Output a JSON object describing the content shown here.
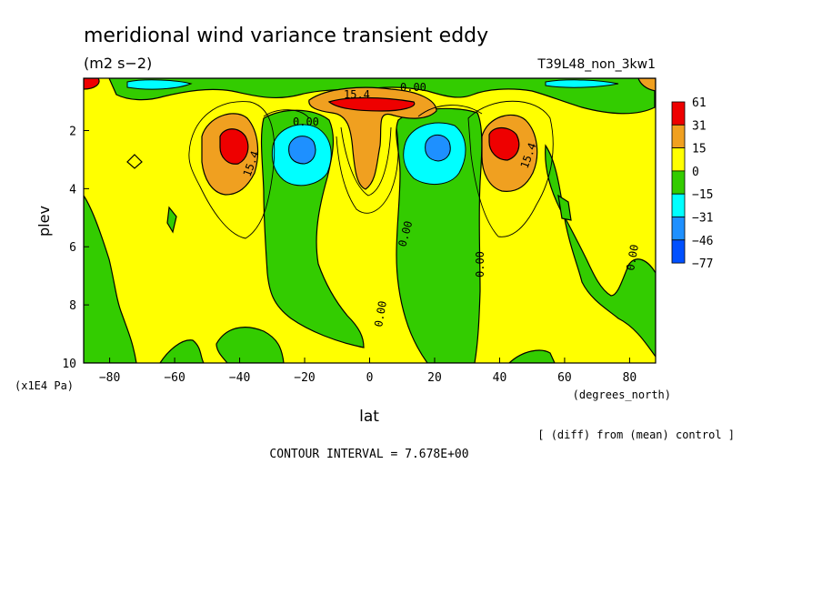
{
  "chart_data": {
    "type": "contour",
    "title": "meridional wind variance transient eddy",
    "units": "(m2 s−2)",
    "run_label": "T39L48_non_3kw1",
    "xlabel": "lat",
    "xunits": "(degrees_north)",
    "ylabel": "plev",
    "yunits": "(x1E4 Pa)",
    "xlim": [
      -88,
      88
    ],
    "ylim": [
      10,
      0.2
    ],
    "x_ticks": [
      -80,
      -60,
      -40,
      -20,
      0,
      20,
      40,
      60,
      80
    ],
    "x_tick_labels": [
      "−80",
      "−60",
      "−40",
      "−20",
      "0",
      "20",
      "40",
      "60",
      "80"
    ],
    "y_ticks": [
      2,
      4,
      6,
      8,
      10
    ],
    "y_tick_labels": [
      "2",
      "4",
      "6",
      "8",
      "10"
    ],
    "colorbar": {
      "labels": [
        "61",
        "31",
        "15",
        "0",
        "−15",
        "−31",
        "−46",
        "−77"
      ],
      "colors": [
        "#ee0000",
        "#f0a020",
        "#ffff00",
        "#33cc00",
        "#00ffff",
        "#1e90ff",
        "#0050ff"
      ]
    },
    "contour_labels": [
      "15.4",
      "0.00",
      "0.00",
      "15.4",
      "15.4",
      "0.00",
      "0.00",
      "0.00",
      "0.00"
    ],
    "features": [
      {
        "lat": -40,
        "plev": 2.3,
        "value": 61
      },
      {
        "lat": 42,
        "plev": 2.3,
        "value": 61
      },
      {
        "lat": -22,
        "plev": 2.7,
        "value": -38
      },
      {
        "lat": 21,
        "plev": 2.6,
        "value": -38
      },
      {
        "lat": 0,
        "plev": 1.0,
        "value": 45
      },
      {
        "lat": 0,
        "plev": 3.0,
        "value": 20
      }
    ],
    "contour_interval_text": "CONTOUR INTERVAL = 7.678E+00",
    "footnote": "[ (diff) from (mean) control ]"
  }
}
